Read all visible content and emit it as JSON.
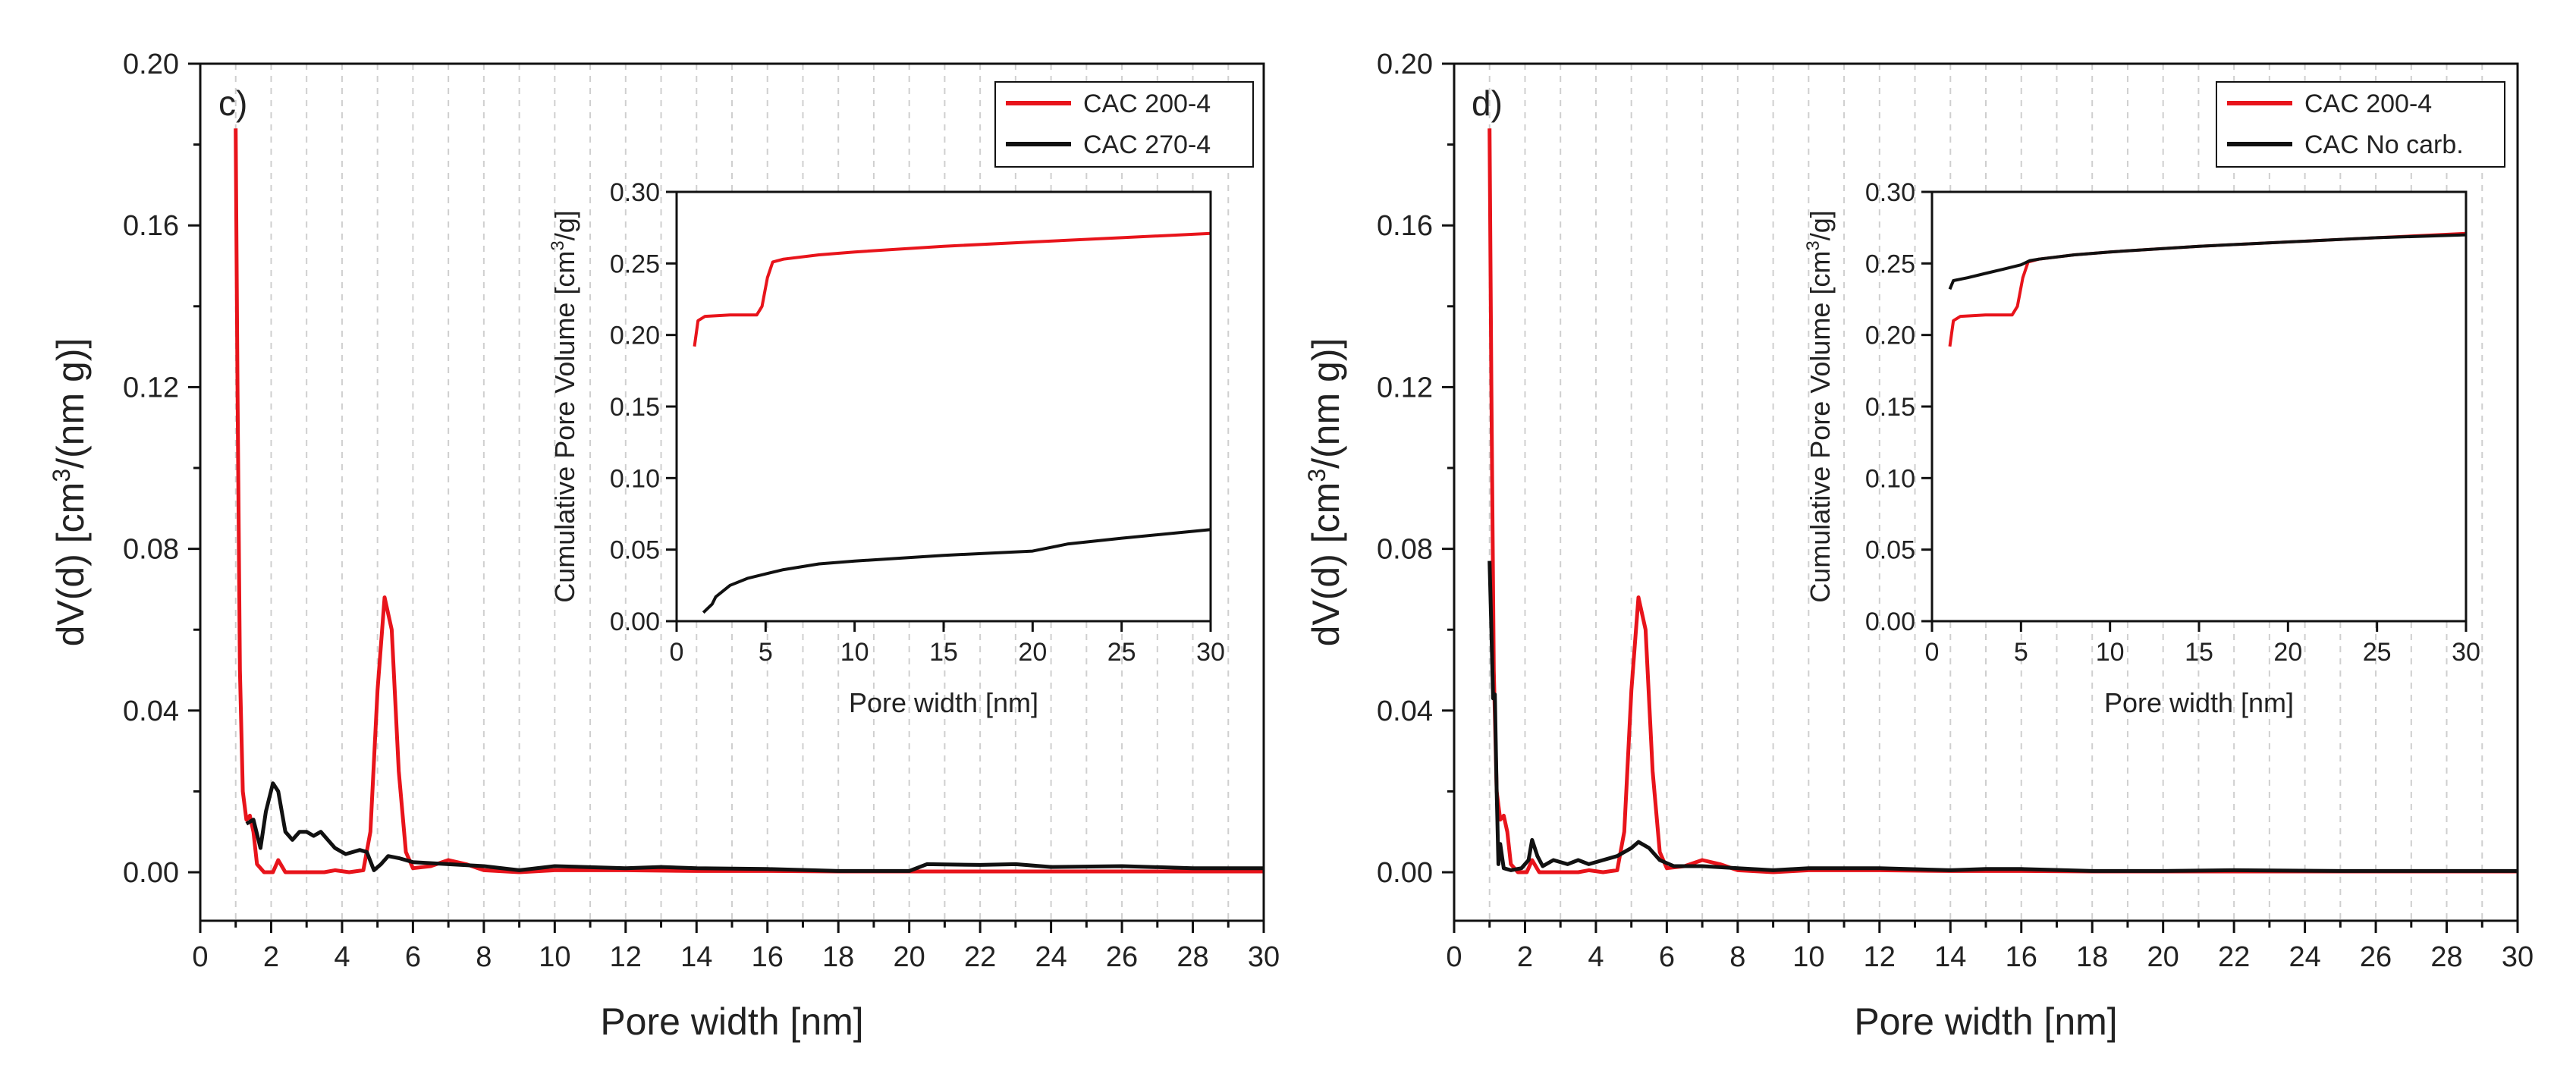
{
  "chart_data": [
    {
      "panel_label": "c)",
      "type": "line",
      "xlabel": "Pore width [nm]",
      "ylabel_parts": [
        "dV(d) [cm",
        "3",
        "/(nm g)]"
      ],
      "xlim": [
        0,
        30
      ],
      "ylim": [
        -0.012,
        0.2
      ],
      "x_ticks": [
        "0",
        "2",
        "4",
        "6",
        "8",
        "10",
        "12",
        "14",
        "16",
        "18",
        "20",
        "22",
        "24",
        "26",
        "28",
        "30"
      ],
      "y_ticks": [
        "0.00",
        "0.04",
        "0.08",
        "0.12",
        "0.16",
        "0.20"
      ],
      "colors": {
        "red": "#e8141b",
        "black": "#111111",
        "grid": "#cfcfcf"
      },
      "legend": [
        "CAC 200-4",
        "CAC 270-4"
      ],
      "series": [
        {
          "name": "CAC 200-4",
          "color": "#e8141b",
          "points": [
            [
              1,
              0.184
            ],
            [
              1.05,
              0.12
            ],
            [
              1.12,
              0.05
            ],
            [
              1.2,
              0.02
            ],
            [
              1.3,
              0.013
            ],
            [
              1.4,
              0.014
            ],
            [
              1.5,
              0.01
            ],
            [
              1.6,
              0.002
            ],
            [
              1.8,
              0.0
            ],
            [
              2.05,
              0.0
            ],
            [
              2.2,
              0.003
            ],
            [
              2.4,
              0.0
            ],
            [
              3,
              0
            ],
            [
              3.5,
              0
            ],
            [
              3.8,
              0.0005
            ],
            [
              4.2,
              0
            ],
            [
              4.6,
              0.0005
            ],
            [
              4.8,
              0.01
            ],
            [
              5.0,
              0.045
            ],
            [
              5.2,
              0.068
            ],
            [
              5.4,
              0.06
            ],
            [
              5.6,
              0.025
            ],
            [
              5.8,
              0.005
            ],
            [
              6.0,
              0.001
            ],
            [
              6.5,
              0.0015
            ],
            [
              7.0,
              0.003
            ],
            [
              7.5,
              0.002
            ],
            [
              8,
              0.0005
            ],
            [
              9,
              0
            ],
            [
              10,
              0.0005
            ],
            [
              12,
              0.0005
            ],
            [
              14,
              0.0003
            ],
            [
              16,
              0.0003
            ],
            [
              18,
              0.0002
            ],
            [
              20,
              0.0002
            ],
            [
              22,
              0.0002
            ],
            [
              25,
              0.0002
            ],
            [
              30,
              0.0002
            ]
          ]
        },
        {
          "name": "CAC 270-4",
          "color": "#111111",
          "points": [
            [
              1.3,
              0.012
            ],
            [
              1.5,
              0.013
            ],
            [
              1.7,
              0.006
            ],
            [
              1.85,
              0.015
            ],
            [
              2.05,
              0.022
            ],
            [
              2.2,
              0.02
            ],
            [
              2.4,
              0.01
            ],
            [
              2.6,
              0.008
            ],
            [
              2.8,
              0.01
            ],
            [
              3.0,
              0.01
            ],
            [
              3.2,
              0.009
            ],
            [
              3.4,
              0.01
            ],
            [
              3.6,
              0.008
            ],
            [
              3.8,
              0.006
            ],
            [
              4.1,
              0.0045
            ],
            [
              4.5,
              0.0055
            ],
            [
              4.7,
              0.005
            ],
            [
              4.9,
              0.0005
            ],
            [
              5.1,
              0.002
            ],
            [
              5.3,
              0.004
            ],
            [
              5.6,
              0.0035
            ],
            [
              6.0,
              0.0025
            ],
            [
              7,
              0.002
            ],
            [
              8,
              0.0015
            ],
            [
              9,
              0.0005
            ],
            [
              10,
              0.0015
            ],
            [
              12,
              0.001
            ],
            [
              13,
              0.0013
            ],
            [
              14,
              0.001
            ],
            [
              16,
              0.0008
            ],
            [
              18,
              0.0003
            ],
            [
              20,
              0.0003
            ],
            [
              20.5,
              0.002
            ],
            [
              22,
              0.0018
            ],
            [
              23,
              0.002
            ],
            [
              24,
              0.0013
            ],
            [
              26,
              0.0015
            ],
            [
              28,
              0.001
            ],
            [
              30,
              0.001
            ]
          ]
        }
      ],
      "inset": {
        "xlabel": "Pore width [nm]",
        "ylabel_parts": [
          "Cumulative Pore Volume [cm",
          "3",
          "/g]"
        ],
        "xlim": [
          0,
          30
        ],
        "ylim": [
          0,
          0.3
        ],
        "x_ticks": [
          "0",
          "5",
          "10",
          "15",
          "20",
          "25",
          "30"
        ],
        "y_ticks": [
          "0.00",
          "0.05",
          "0.10",
          "0.15",
          "0.20",
          "0.25",
          "0.30"
        ],
        "series": [
          {
            "name": "CAC 200-4",
            "color": "#e8141b",
            "points": [
              [
                1,
                0.192
              ],
              [
                1.2,
                0.21
              ],
              [
                1.6,
                0.213
              ],
              [
                3,
                0.214
              ],
              [
                4.5,
                0.214
              ],
              [
                4.8,
                0.22
              ],
              [
                5.1,
                0.24
              ],
              [
                5.4,
                0.251
              ],
              [
                6,
                0.253
              ],
              [
                8,
                0.256
              ],
              [
                10,
                0.258
              ],
              [
                15,
                0.262
              ],
              [
                20,
                0.265
              ],
              [
                25,
                0.268
              ],
              [
                30,
                0.271
              ]
            ]
          },
          {
            "name": "CAC 270-4",
            "color": "#111111",
            "points": [
              [
                1.5,
                0.006
              ],
              [
                2,
                0.012
              ],
              [
                2.2,
                0.017
              ],
              [
                3,
                0.025
              ],
              [
                4,
                0.03
              ],
              [
                5,
                0.033
              ],
              [
                6,
                0.036
              ],
              [
                8,
                0.04
              ],
              [
                10,
                0.042
              ],
              [
                15,
                0.046
              ],
              [
                20,
                0.049
              ],
              [
                22,
                0.054
              ],
              [
                25,
                0.058
              ],
              [
                30,
                0.064
              ]
            ]
          }
        ]
      }
    },
    {
      "panel_label": "d)",
      "type": "line",
      "xlabel": "Pore width [nm]",
      "ylabel_parts": [
        "dV(d) [cm",
        "3",
        "/(nm g)]"
      ],
      "xlim": [
        0,
        30
      ],
      "ylim": [
        -0.012,
        0.2
      ],
      "x_ticks": [
        "0",
        "2",
        "4",
        "6",
        "8",
        "10",
        "12",
        "14",
        "16",
        "18",
        "20",
        "22",
        "24",
        "26",
        "28",
        "30"
      ],
      "y_ticks": [
        "0.00",
        "0.04",
        "0.08",
        "0.12",
        "0.16",
        "0.20"
      ],
      "colors": {
        "red": "#e8141b",
        "black": "#111111",
        "grid": "#cfcfcf"
      },
      "legend": [
        "CAC 200-4",
        "CAC No carb."
      ],
      "series": [
        {
          "name": "CAC 200-4",
          "color": "#e8141b",
          "points": [
            [
              1,
              0.184
            ],
            [
              1.05,
              0.12
            ],
            [
              1.12,
              0.05
            ],
            [
              1.2,
              0.02
            ],
            [
              1.3,
              0.013
            ],
            [
              1.4,
              0.014
            ],
            [
              1.5,
              0.01
            ],
            [
              1.6,
              0.002
            ],
            [
              1.8,
              0.0
            ],
            [
              2.05,
              0.0
            ],
            [
              2.2,
              0.003
            ],
            [
              2.4,
              0.0
            ],
            [
              3,
              0
            ],
            [
              3.5,
              0
            ],
            [
              3.8,
              0.0005
            ],
            [
              4.2,
              0
            ],
            [
              4.6,
              0.0005
            ],
            [
              4.8,
              0.01
            ],
            [
              5.0,
              0.045
            ],
            [
              5.2,
              0.068
            ],
            [
              5.4,
              0.06
            ],
            [
              5.6,
              0.025
            ],
            [
              5.8,
              0.005
            ],
            [
              6.0,
              0.001
            ],
            [
              6.5,
              0.0015
            ],
            [
              7.0,
              0.003
            ],
            [
              7.5,
              0.002
            ],
            [
              8,
              0.0005
            ],
            [
              9,
              0
            ],
            [
              10,
              0.0005
            ],
            [
              12,
              0.0005
            ],
            [
              14,
              0.0003
            ],
            [
              16,
              0.0003
            ],
            [
              18,
              0.0002
            ],
            [
              20,
              0.0002
            ],
            [
              22,
              0.0002
            ],
            [
              25,
              0.0002
            ],
            [
              30,
              0.0002
            ]
          ]
        },
        {
          "name": "CAC No carb.",
          "color": "#111111",
          "points": [
            [
              1,
              0.077
            ],
            [
              1.05,
              0.06
            ],
            [
              1.1,
              0.043
            ],
            [
              1.15,
              0.044
            ],
            [
              1.2,
              0.02
            ],
            [
              1.25,
              0.002
            ],
            [
              1.3,
              0.007
            ],
            [
              1.4,
              0.001
            ],
            [
              1.6,
              0.0005
            ],
            [
              1.9,
              0.001
            ],
            [
              2.1,
              0.003
            ],
            [
              2.2,
              0.008
            ],
            [
              2.35,
              0.004
            ],
            [
              2.5,
              0.0015
            ],
            [
              2.8,
              0.003
            ],
            [
              3.2,
              0.002
            ],
            [
              3.5,
              0.003
            ],
            [
              3.8,
              0.002
            ],
            [
              4.2,
              0.003
            ],
            [
              4.6,
              0.004
            ],
            [
              5.0,
              0.006
            ],
            [
              5.2,
              0.0075
            ],
            [
              5.5,
              0.006
            ],
            [
              5.8,
              0.003
            ],
            [
              6.2,
              0.0015
            ],
            [
              7,
              0.0015
            ],
            [
              8,
              0.001
            ],
            [
              9,
              0.0005
            ],
            [
              10,
              0.001
            ],
            [
              12,
              0.001
            ],
            [
              14,
              0.0005
            ],
            [
              15,
              0.0008
            ],
            [
              16,
              0.0008
            ],
            [
              18,
              0.0003
            ],
            [
              20,
              0.0003
            ],
            [
              22,
              0.0005
            ],
            [
              25,
              0.0003
            ],
            [
              30,
              0.0003
            ]
          ]
        }
      ],
      "inset": {
        "xlabel": "Pore width [nm]",
        "ylabel_parts": [
          "Cumulative Pore Volume [cm",
          "3",
          "/g]"
        ],
        "xlim": [
          0,
          30
        ],
        "ylim": [
          0,
          0.3
        ],
        "x_ticks": [
          "0",
          "5",
          "10",
          "15",
          "20",
          "25",
          "30"
        ],
        "y_ticks": [
          "0.00",
          "0.05",
          "0.10",
          "0.15",
          "0.20",
          "0.25",
          "0.30"
        ],
        "series": [
          {
            "name": "CAC 200-4",
            "color": "#e8141b",
            "points": [
              [
                1,
                0.192
              ],
              [
                1.2,
                0.21
              ],
              [
                1.6,
                0.213
              ],
              [
                3,
                0.214
              ],
              [
                4.5,
                0.214
              ],
              [
                4.8,
                0.22
              ],
              [
                5.1,
                0.24
              ],
              [
                5.4,
                0.251
              ],
              [
                6,
                0.253
              ],
              [
                8,
                0.256
              ],
              [
                10,
                0.258
              ],
              [
                15,
                0.262
              ],
              [
                20,
                0.265
              ],
              [
                25,
                0.268
              ],
              [
                30,
                0.271
              ]
            ]
          },
          {
            "name": "CAC No carb.",
            "color": "#111111",
            "points": [
              [
                1,
                0.232
              ],
              [
                1.2,
                0.238
              ],
              [
                2,
                0.24
              ],
              [
                3,
                0.243
              ],
              [
                4,
                0.246
              ],
              [
                5,
                0.249
              ],
              [
                5.5,
                0.252
              ],
              [
                6,
                0.253
              ],
              [
                8,
                0.256
              ],
              [
                10,
                0.258
              ],
              [
                15,
                0.262
              ],
              [
                20,
                0.265
              ],
              [
                25,
                0.268
              ],
              [
                30,
                0.27
              ]
            ]
          }
        ]
      }
    }
  ]
}
